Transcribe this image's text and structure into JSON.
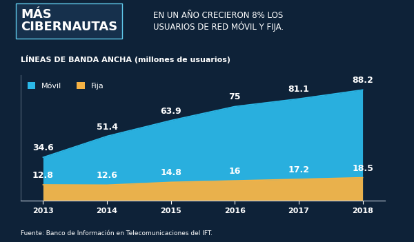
{
  "chart_data": {
    "type": "area",
    "title": "MÁS\nCIBERNAUTAS",
    "subtitle": "EN UN AÑO CRECIERON 8% LOS\nUSUARIOS DE RED MÓVIL Y FIJA.",
    "ylabel": "LÍNEAS DE BANDA ANCHA (millones de usuarios)",
    "source": "Fuente: Banco de Información en Telecomunicaciones del IFT.",
    "categories": [
      "2013",
      "2014",
      "2015",
      "2016",
      "2017",
      "2018"
    ],
    "series": [
      {
        "name": "Móvil",
        "color": "#2bb8e8",
        "values": [
          34.6,
          51.4,
          63.9,
          75,
          81.1,
          88.2
        ]
      },
      {
        "name": "Fija",
        "color": "#f5b244",
        "values": [
          12.8,
          12.6,
          14.8,
          16,
          17.2,
          18.5
        ]
      }
    ],
    "ylim": [
      0,
      100
    ],
    "yticks": [],
    "stacked": false,
    "grid": false,
    "legend": "upper left",
    "data_labels": true,
    "tick_labels": "x"
  }
}
